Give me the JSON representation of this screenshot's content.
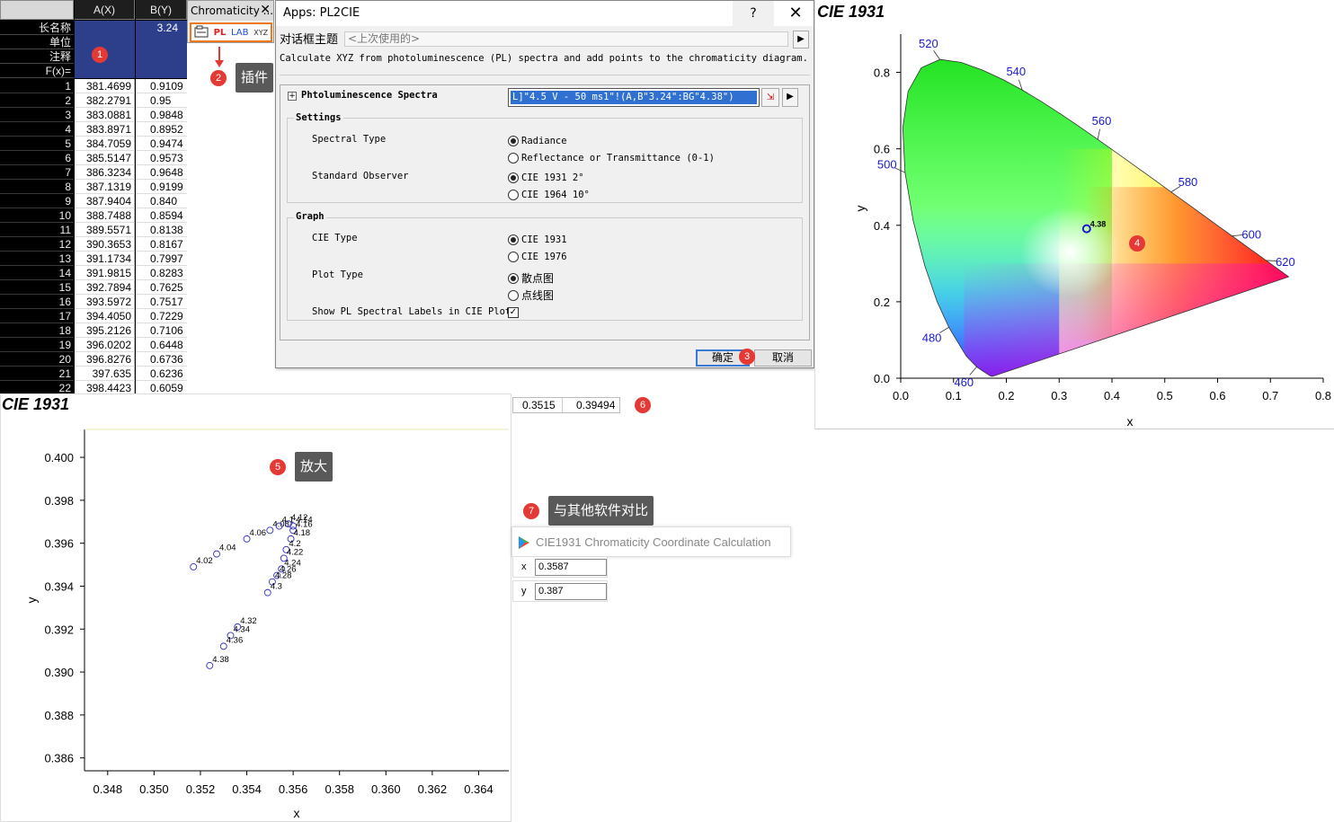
{
  "worksheet": {
    "col_a": "A(X)",
    "col_b": "B(Y)",
    "meta_labels": [
      "长名称",
      "单位",
      "注释",
      "F(x)="
    ],
    "long_name_b": "3.24",
    "rows": [
      {
        "n": "1",
        "a": "381.4699",
        "b": "0.9109"
      },
      {
        "n": "2",
        "a": "382.2791",
        "b": "0.95"
      },
      {
        "n": "3",
        "a": "383.0881",
        "b": "0.9848"
      },
      {
        "n": "4",
        "a": "383.8971",
        "b": "0.8952"
      },
      {
        "n": "5",
        "a": "384.7059",
        "b": "0.9474"
      },
      {
        "n": "6",
        "a": "385.5147",
        "b": "0.9573"
      },
      {
        "n": "7",
        "a": "386.3234",
        "b": "0.9648"
      },
      {
        "n": "8",
        "a": "387.1319",
        "b": "0.9199"
      },
      {
        "n": "9",
        "a": "387.9404",
        "b": "0.840"
      },
      {
        "n": "10",
        "a": "388.7488",
        "b": "0.8594"
      },
      {
        "n": "11",
        "a": "389.5571",
        "b": "0.8138"
      },
      {
        "n": "12",
        "a": "390.3653",
        "b": "0.8167"
      },
      {
        "n": "13",
        "a": "391.1734",
        "b": "0.7997"
      },
      {
        "n": "14",
        "a": "391.9815",
        "b": "0.8283"
      },
      {
        "n": "15",
        "a": "392.7894",
        "b": "0.7625"
      },
      {
        "n": "16",
        "a": "393.5972",
        "b": "0.7517"
      },
      {
        "n": "17",
        "a": "394.4050",
        "b": "0.7229"
      },
      {
        "n": "18",
        "a": "395.2126",
        "b": "0.7106"
      },
      {
        "n": "19",
        "a": "396.0202",
        "b": "0.6448"
      },
      {
        "n": "20",
        "a": "396.8276",
        "b": "0.6736"
      },
      {
        "n": "21",
        "a": "397.635",
        "b": "0.6236"
      },
      {
        "n": "22",
        "a": "398.4423",
        "b": "0.6059"
      }
    ]
  },
  "chroma_toolbar": {
    "title": "Chromaticity ...",
    "close": "✕",
    "pl": "PL",
    "lab": "LAB",
    "xyz": "XYZ"
  },
  "badges": {
    "b1": "1",
    "b2": "2",
    "b3": "3",
    "b4": "4",
    "b5": "5",
    "b6": "6",
    "b7": "7"
  },
  "callouts": {
    "plugin": "插件",
    "zoom": "放大",
    "compare": "与其他软件对比"
  },
  "dialog": {
    "title": "Apps: PL2CIE",
    "help": "?",
    "close": "✕",
    "theme_label": "对话框主题",
    "theme_value": "<上次使用的>",
    "description": "Calculate XYZ from photoluminescence (PL) spectra and add points to the chromaticity diagram.",
    "spectra_label": "Phtoluminescence Spectra",
    "spectra_value": "L]\"4.5 V - 50 ms1\"!(A,B\"3.24\":BG\"4.38\")",
    "settings": {
      "title": "Settings",
      "spectral_type_label": "Spectral Type",
      "spectral_options": [
        "Radiance",
        "Reflectance or Transmittance (0-1)"
      ],
      "observer_label": "Standard Observer",
      "observer_options": [
        "CIE 1931 2°",
        "CIE 1964 10°"
      ]
    },
    "graph": {
      "title": "Graph",
      "cie_type_label": "CIE Type",
      "cie_options": [
        "CIE 1931",
        "CIE 1976"
      ],
      "plot_type_label": "Plot Type",
      "plot_options": [
        "散点图",
        "点线图"
      ],
      "show_labels_label": "Show PL Spectral Labels in CIE Plot",
      "show_labels_checked": true
    },
    "ok": "确定",
    "cancel": "取消"
  },
  "cie_main": {
    "title": "CIE 1931",
    "xlabel": "x",
    "ylabel": "y",
    "xticks": [
      "0.0",
      "0.1",
      "0.2",
      "0.3",
      "0.4",
      "0.5",
      "0.6",
      "0.7",
      "0.8"
    ],
    "yticks": [
      "0.0",
      "0.2",
      "0.4",
      "0.6",
      "0.8"
    ],
    "wavelength_labels": [
      {
        "text": "460",
        "x": 0.144,
        "y": 0.03
      },
      {
        "text": "480",
        "x": 0.091,
        "y": 0.133
      },
      {
        "text": "500",
        "x": 0.008,
        "y": 0.538
      },
      {
        "text": "520",
        "x": 0.074,
        "y": 0.834
      },
      {
        "text": "540",
        "x": 0.23,
        "y": 0.754
      },
      {
        "text": "560",
        "x": 0.373,
        "y": 0.624
      },
      {
        "text": "580",
        "x": 0.512,
        "y": 0.487
      },
      {
        "text": "600",
        "x": 0.627,
        "y": 0.372
      },
      {
        "text": "620",
        "x": 0.691,
        "y": 0.308
      }
    ],
    "point_label": "4.38",
    "point": {
      "x": 0.352,
      "y": 0.391
    }
  },
  "cie_zoom": {
    "title": "CIE 1931",
    "xlabel": "x",
    "ylabel": "y",
    "xticks": [
      "0.348",
      "0.350",
      "0.352",
      "0.354",
      "0.356",
      "0.358",
      "0.360",
      "0.362",
      "0.364"
    ],
    "yticks": [
      "0.386",
      "0.388",
      "0.390",
      "0.392",
      "0.394",
      "0.396",
      "0.398",
      "0.400"
    ]
  },
  "chart_data": {
    "type": "scatter",
    "title": "CIE 1931",
    "xlabel": "x",
    "ylabel": "y",
    "xlim": [
      0.347,
      0.3653
    ],
    "ylim": [
      0.3854,
      0.4013
    ],
    "points": [
      {
        "label": "4.02",
        "x": 0.3517,
        "y": 0.3949
      },
      {
        "label": "4.04",
        "x": 0.3527,
        "y": 0.3955
      },
      {
        "label": "4.06",
        "x": 0.354,
        "y": 0.3962
      },
      {
        "label": "4.08",
        "x": 0.355,
        "y": 0.3966
      },
      {
        "label": "4.1",
        "x": 0.3554,
        "y": 0.3968
      },
      {
        "label": "4.12",
        "x": 0.3558,
        "y": 0.3969
      },
      {
        "label": "4.14",
        "x": 0.356,
        "y": 0.3968
      },
      {
        "label": "4.16",
        "x": 0.356,
        "y": 0.3966
      },
      {
        "label": "4.18",
        "x": 0.3559,
        "y": 0.3962
      },
      {
        "label": "4.2",
        "x": 0.3557,
        "y": 0.3957
      },
      {
        "label": "4.22",
        "x": 0.3556,
        "y": 0.3953
      },
      {
        "label": "4.24",
        "x": 0.3555,
        "y": 0.3948
      },
      {
        "label": "4.26",
        "x": 0.3553,
        "y": 0.3945
      },
      {
        "label": "4.28",
        "x": 0.3551,
        "y": 0.3942
      },
      {
        "label": "4.3",
        "x": 0.3549,
        "y": 0.3937
      },
      {
        "label": "4.32",
        "x": 0.3536,
        "y": 0.3921
      },
      {
        "label": "4.34",
        "x": 0.3533,
        "y": 0.3917
      },
      {
        "label": "4.36",
        "x": 0.353,
        "y": 0.3912
      },
      {
        "label": "4.38",
        "x": 0.3524,
        "y": 0.3903
      }
    ]
  },
  "xy_readout": {
    "x": "0.3515",
    "y": "0.39494"
  },
  "calc": {
    "title": "CIE1931 Chromaticity Coordinate Calculation",
    "x_label": "x",
    "x_value": "0.3587",
    "y_label": "y",
    "y_value": "0.387"
  }
}
